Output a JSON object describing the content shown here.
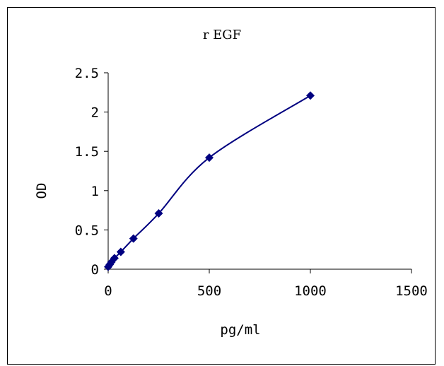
{
  "chart_data": {
    "type": "scatter",
    "title": "r EGF",
    "xlabel": "pg/ml",
    "ylabel": "OD",
    "xlim": [
      0,
      1500
    ],
    "ylim": [
      0,
      2.5
    ],
    "x_ticks": [
      "0",
      "500",
      "1000",
      "1500"
    ],
    "y_ticks": [
      "0",
      "0.5",
      "1",
      "1.5",
      "2",
      "2.5"
    ],
    "grid": false,
    "legend": "none",
    "smoothed_line": true,
    "colors": {
      "series": "#000080",
      "axis": "#000000"
    },
    "series": [
      {
        "x": [
          0,
          7.8,
          15.6,
          31.2,
          62.5,
          125,
          250,
          500,
          1000
        ],
        "y": [
          0.03,
          0.06,
          0.09,
          0.14,
          0.22,
          0.39,
          0.71,
          1.42,
          2.21
        ]
      }
    ]
  }
}
